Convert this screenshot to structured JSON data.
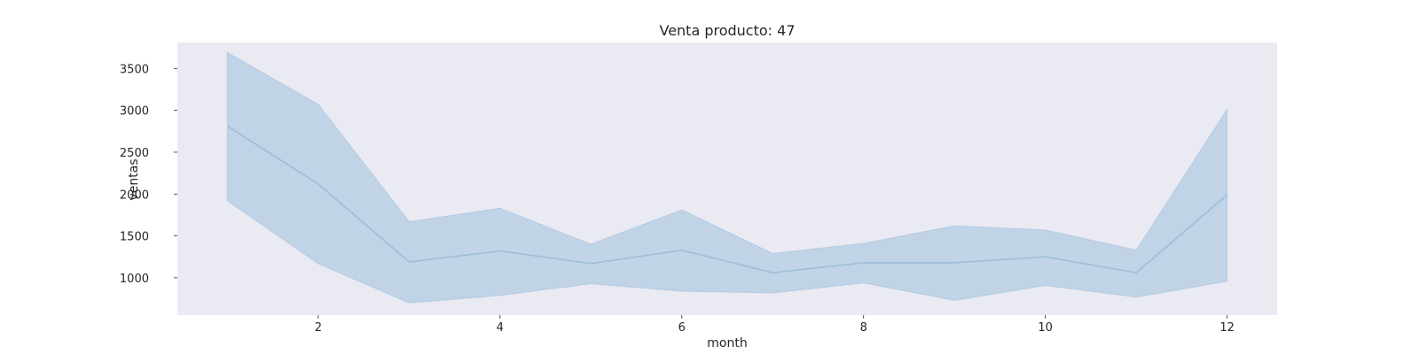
{
  "chart_data": {
    "type": "line",
    "title": "Venta producto: 47",
    "xlabel": "month",
    "ylabel": "ventas",
    "xlim": [
      0.45,
      12.55
    ],
    "ylim": [
      555,
      3810
    ],
    "xticks": [
      2,
      4,
      6,
      8,
      10,
      12
    ],
    "yticks": [
      1000,
      1500,
      2000,
      2500,
      3000,
      3500
    ],
    "grid": false,
    "legend": "none",
    "colors": {
      "line": "#9ebdd9",
      "band": "#b3cbe2",
      "plot_bg": "#eaeaf2"
    },
    "series": [
      {
        "x": [
          1,
          2,
          3,
          4,
          5,
          6,
          7,
          8,
          9,
          10,
          11,
          12
        ],
        "values": [
          2810,
          2120,
          1190,
          1320,
          1170,
          1330,
          1060,
          1180,
          1180,
          1250,
          1060,
          1990
        ],
        "upper": [
          3690,
          3070,
          1670,
          1830,
          1400,
          1810,
          1290,
          1410,
          1620,
          1570,
          1330,
          3010
        ],
        "lower": [
          1920,
          1170,
          700,
          790,
          930,
          840,
          820,
          940,
          730,
          910,
          770,
          960
        ]
      }
    ]
  }
}
